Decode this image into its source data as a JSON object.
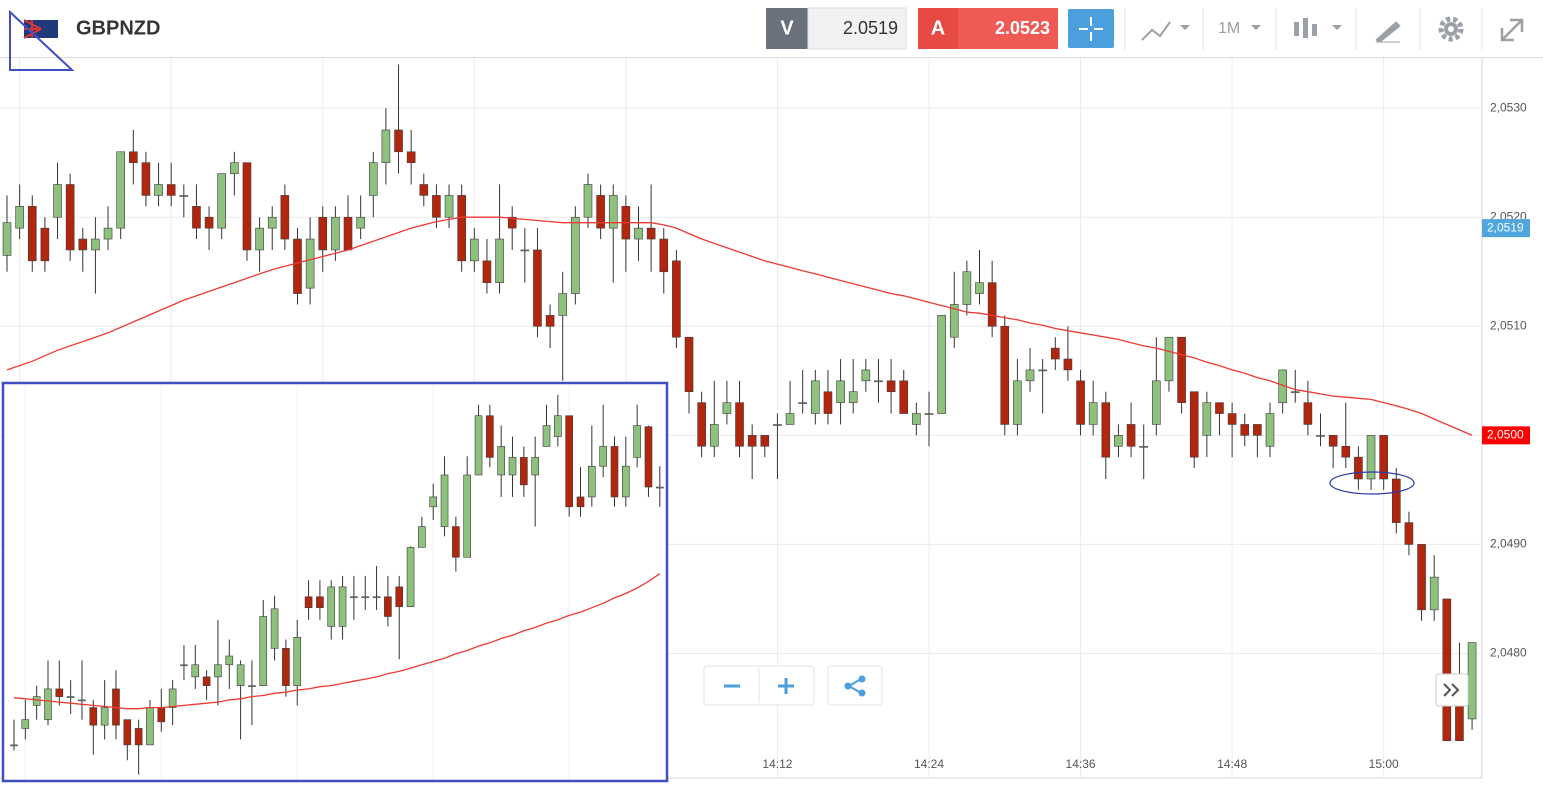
{
  "toolbar": {
    "symbol": "GBPNZD",
    "bid": {
      "label": "V",
      "price": 2.0519
    },
    "ask": {
      "label": "A",
      "price": 2.0523
    },
    "timeframe": "1M"
  },
  "chart_data": [
    {
      "type": "candlestick",
      "x": [
        null,
        null,
        null,
        null,
        null,
        null,
        null,
        null,
        null,
        null,
        null,
        null,
        null,
        null,
        null,
        null,
        null,
        null,
        null,
        null,
        null,
        null,
        null,
        null,
        null,
        null,
        null,
        null,
        null,
        null,
        null,
        null,
        null,
        null,
        null,
        null,
        null,
        null,
        null,
        null,
        null,
        null,
        null,
        null,
        null,
        null,
        null,
        null,
        null,
        null,
        null,
        null,
        null,
        null,
        null,
        null,
        null,
        null,
        null,
        null,
        null,
        "14:12",
        null,
        null,
        null,
        null,
        null,
        null,
        null,
        null,
        null,
        null,
        null,
        "14:24",
        null,
        null,
        null,
        null,
        null,
        null,
        null,
        null,
        null,
        null,
        null,
        "14:36",
        null,
        null,
        null,
        null,
        null,
        null,
        null,
        null,
        null,
        null,
        null,
        "14:48",
        null,
        null,
        null,
        null,
        null,
        null,
        null,
        null,
        null,
        null,
        null,
        "15:00",
        null,
        null,
        null,
        null,
        null,
        null,
        null
      ],
      "open": [
        2.05165,
        2.0519,
        2.0521,
        2.0519,
        2.052,
        2.0523,
        2.0518,
        2.0517,
        2.0518,
        2.0519,
        2.0526,
        2.0525,
        2.0522,
        2.0523,
        2.0522,
        2.0521,
        2.052,
        2.0519,
        2.0524,
        2.0525,
        2.0517,
        2.0519,
        2.0522,
        2.0518,
        2.05135,
        2.052,
        2.0517,
        2.052,
        2.0519,
        2.0522,
        2.0525,
        2.0528,
        2.0526,
        2.0523,
        2.0522,
        2.052,
        2.0522,
        2.0516,
        2.0516,
        2.0514,
        2.052,
        2.0517,
        2.0517,
        2.0511,
        2.0511,
        2.0513,
        2.052,
        2.0522,
        2.0519,
        2.0521,
        2.0518,
        2.0519,
        2.0518,
        2.0516,
        2.0509,
        2.0503,
        2.0499,
        2.0502,
        2.0503,
        2.05,
        2.05,
        2.0501,
        2.0501,
        2.0503,
        2.0502,
        2.0504,
        2.0503,
        2.0503,
        2.0505,
        2.0505,
        2.0505,
        2.0505,
        2.0501,
        2.0502,
        2.0502,
        2.0509,
        2.0512,
        2.0513,
        2.0514,
        2.051,
        2.0501,
        2.0505,
        2.0506,
        2.0508,
        2.0507,
        2.0505,
        2.0501,
        2.0503,
        2.0499,
        2.0501,
        2.0499,
        2.0501,
        2.0505,
        2.0509,
        2.0504,
        2.05,
        2.0503,
        2.0502,
        2.0501,
        2.0501,
        2.0499,
        2.0503,
        2.0504,
        2.0503,
        2.05,
        2.05,
        2.0499,
        2.0498,
        2.0496,
        2.05,
        2.0496,
        2.0492,
        2.049,
        2.0484,
        2.0485,
        2.0476,
        2.0474
      ],
      "high": [
        2.0522,
        2.0523,
        2.0522,
        2.052,
        2.0525,
        2.0524,
        2.0519,
        2.052,
        2.0521,
        2.0526,
        2.0528,
        2.0526,
        2.0525,
        2.0525,
        2.0523,
        2.0523,
        2.0521,
        2.0524,
        2.0526,
        2.0525,
        2.052,
        2.0521,
        2.0523,
        2.0519,
        2.052,
        2.0521,
        2.0521,
        2.0522,
        2.0522,
        2.0526,
        2.053,
        2.0534,
        2.0528,
        2.0524,
        2.0523,
        2.0523,
        2.0523,
        2.0519,
        2.0518,
        2.0523,
        2.0521,
        2.0519,
        2.0519,
        2.0512,
        2.0515,
        2.0521,
        2.0524,
        2.0523,
        2.0523,
        2.0522,
        2.0521,
        2.0523,
        2.0519,
        2.0517,
        2.0509,
        2.0504,
        2.0505,
        2.0505,
        2.0505,
        2.0501,
        2.05,
        2.0502,
        2.0505,
        2.0506,
        2.0506,
        2.0506,
        2.0507,
        2.0507,
        2.0507,
        2.0507,
        2.0507,
        2.0506,
        2.0503,
        2.0504,
        2.0511,
        2.0515,
        2.0516,
        2.0517,
        2.0516,
        2.0511,
        2.0507,
        2.0508,
        2.0507,
        2.0509,
        2.051,
        2.0506,
        2.0505,
        2.0504,
        2.0501,
        2.0503,
        2.0501,
        2.0509,
        2.0509,
        2.0509,
        2.0504,
        2.0504,
        2.0503,
        2.0503,
        2.0502,
        2.0501,
        2.0503,
        2.0506,
        2.0506,
        2.0505,
        2.0502,
        2.05,
        2.0503,
        2.0499,
        2.05,
        2.05,
        2.0497,
        2.0493,
        2.049,
        2.0489,
        2.0485,
        2.0481,
        2.0481
      ],
      "low": [
        2.0515,
        2.0518,
        2.0515,
        2.0515,
        2.0518,
        2.0516,
        2.0515,
        2.0513,
        2.0517,
        2.0518,
        2.0523,
        2.0521,
        2.0521,
        2.0521,
        2.052,
        2.0518,
        2.0517,
        2.0518,
        2.0522,
        2.0516,
        2.0515,
        2.0517,
        2.0517,
        2.0512,
        2.0512,
        2.0515,
        2.0516,
        2.0517,
        2.0518,
        2.052,
        2.0523,
        2.0524,
        2.0523,
        2.0521,
        2.0519,
        2.0519,
        2.0515,
        2.0515,
        2.0513,
        2.0513,
        2.0517,
        2.0514,
        2.0509,
        2.0508,
        2.0505,
        2.0512,
        2.0519,
        2.0518,
        2.0514,
        2.0515,
        2.0516,
        2.0515,
        2.0513,
        2.0508,
        2.0502,
        2.0498,
        2.0498,
        2.0501,
        2.0498,
        2.0496,
        2.0498,
        2.0496,
        2.0501,
        2.0502,
        2.0501,
        2.0501,
        2.0501,
        2.0502,
        2.0504,
        2.0503,
        2.0502,
        2.0502,
        2.05,
        2.0499,
        2.0502,
        2.0508,
        2.0511,
        2.0512,
        2.0509,
        2.05,
        2.05,
        2.0504,
        2.0502,
        2.0506,
        2.0505,
        2.05,
        2.05,
        2.0496,
        2.0498,
        2.0498,
        2.0496,
        2.05,
        2.0504,
        2.0502,
        2.0497,
        2.0498,
        2.05,
        2.0498,
        2.0499,
        2.0498,
        2.0498,
        2.0502,
        2.0503,
        2.05,
        2.0499,
        2.0497,
        2.0497,
        2.0495,
        2.0495,
        2.0495,
        2.0491,
        2.0489,
        2.0483,
        2.0483,
        2.0472,
        2.0472,
        2.0473
      ],
      "close": [
        2.05195,
        2.0521,
        2.0516,
        2.0516,
        2.0523,
        2.0517,
        2.0517,
        2.0518,
        2.0519,
        2.0526,
        2.0525,
        2.0522,
        2.0523,
        2.0522,
        2.0522,
        2.0519,
        2.0519,
        2.0524,
        2.0525,
        2.0517,
        2.0519,
        2.052,
        2.0518,
        2.0513,
        2.0518,
        2.0517,
        2.052,
        2.0517,
        2.052,
        2.0525,
        2.0528,
        2.0526,
        2.0525,
        2.0522,
        2.052,
        2.0522,
        2.0516,
        2.0518,
        2.0514,
        2.0518,
        2.0519,
        2.0517,
        2.051,
        2.051,
        2.0513,
        2.052,
        2.0523,
        2.0519,
        2.0522,
        2.0518,
        2.0519,
        2.0518,
        2.0515,
        2.0509,
        2.0504,
        2.0499,
        2.0501,
        2.0503,
        2.0499,
        2.0499,
        2.0499,
        2.0501,
        2.0502,
        2.0503,
        2.0505,
        2.0502,
        2.0505,
        2.0504,
        2.0506,
        2.0505,
        2.0504,
        2.0502,
        2.0502,
        2.0502,
        2.0511,
        2.0512,
        2.0515,
        2.0514,
        2.051,
        2.0501,
        2.0505,
        2.0506,
        2.0506,
        2.0507,
        2.0506,
        2.0501,
        2.0503,
        2.0498,
        2.05,
        2.0499,
        2.0499,
        2.0505,
        2.0509,
        2.0503,
        2.0498,
        2.0503,
        2.0502,
        2.0501,
        2.05,
        2.05,
        2.0502,
        2.0506,
        2.0504,
        2.0501,
        2.05,
        2.0499,
        2.0498,
        2.0496,
        2.05,
        2.0496,
        2.0492,
        2.049,
        2.0484,
        2.0487,
        2.0472,
        2.0472,
        2.0481
      ],
      "moving_average": {
        "color": "#ee3a32",
        "values": [
          2.0506,
          2.05064,
          2.05068,
          2.05073,
          2.05078,
          2.05082,
          2.05086,
          2.0509,
          2.05094,
          2.05099,
          2.05104,
          2.05109,
          2.05114,
          2.05119,
          2.05124,
          2.05128,
          2.05132,
          2.05136,
          2.0514,
          2.05144,
          2.05148,
          2.05152,
          2.05155,
          2.05158,
          2.05161,
          2.05164,
          2.05167,
          2.0517,
          2.05174,
          2.05178,
          2.05182,
          2.05186,
          2.0519,
          2.05193,
          2.05196,
          2.05198,
          2.052,
          2.052,
          2.052,
          2.052,
          2.05199,
          2.05198,
          2.05197,
          2.05196,
          2.05195,
          2.05195,
          2.05195,
          2.05195,
          2.05195,
          2.05195,
          2.05195,
          2.05195,
          2.05193,
          2.0519,
          2.05185,
          2.0518,
          2.05176,
          2.05172,
          2.05168,
          2.05164,
          2.0516,
          2.05157,
          2.05154,
          2.05151,
          2.05148,
          2.05145,
          2.05142,
          2.05139,
          2.05136,
          2.05133,
          2.0513,
          2.05128,
          2.05125,
          2.05122,
          2.05119,
          2.05116,
          2.05113,
          2.05112,
          2.0511,
          2.05108,
          2.05106,
          2.05103,
          2.05101,
          2.05098,
          2.05096,
          2.05094,
          2.05092,
          2.0509,
          2.05088,
          2.05085,
          2.05082,
          2.0508,
          2.05077,
          2.05074,
          2.05071,
          2.05067,
          2.05064,
          2.0506,
          2.05057,
          2.05053,
          2.0505,
          2.05046,
          2.05042,
          2.0504,
          2.05038,
          2.05036,
          2.05035,
          2.05034,
          2.05033,
          2.0503,
          2.05027,
          2.05024,
          2.0502,
          2.05015,
          2.0501,
          2.05005,
          2.05
        ]
      },
      "up_color": "#8fc17e",
      "down_color": "#b3260e",
      "ylim": [
        2.04695,
        2.05346
      ],
      "yticks": [
        {
          "value": 2.048,
          "label": "2,0480"
        },
        {
          "value": 2.049,
          "label": "2,0490"
        },
        {
          "value": 2.05,
          "label": "2,0500"
        },
        {
          "value": 2.051,
          "label": "2,0510"
        },
        {
          "value": 2.052,
          "label": "2,0520"
        },
        {
          "value": 2.053,
          "label": "2,0530"
        }
      ],
      "grid": true,
      "last_price": {
        "value": 2.0519,
        "label": "2,0519",
        "color": "#4ea6dc"
      },
      "average_price": {
        "value": 2.05,
        "label": "2,0500",
        "color": "#ff0000"
      }
    },
    {
      "type": "candlestick",
      "open": [
        2.04722,
        2.04737,
        2.04758,
        2.04745,
        2.04773,
        2.04766,
        2.04763,
        2.04756,
        2.0474,
        2.04773,
        2.04745,
        2.04737,
        2.04722,
        2.04756,
        2.04756,
        2.04795,
        2.04784,
        2.04784,
        2.04784,
        2.04795,
        2.04776,
        2.04776,
        2.04776,
        2.0481,
        2.0481,
        2.04776,
        2.04857,
        2.04857,
        2.0483,
        2.0483,
        2.04857,
        2.04857,
        2.04857,
        2.04857,
        2.04866,
        2.04848,
        2.04902,
        2.04939,
        2.04921,
        2.04921,
        2.04893,
        2.04968,
        2.05022,
        2.04968,
        2.04968,
        2.04984,
        2.04968,
        2.04994,
        2.05003,
        2.05022,
        2.04948,
        2.04948,
        2.04976,
        2.04994,
        2.04948,
        2.04984,
        2.05012,
        2.04957
      ],
      "high": [
        2.04745,
        2.04763,
        2.04776,
        2.04799,
        2.04799,
        2.04781,
        2.04799,
        2.04763,
        2.04781,
        2.0479,
        2.04745,
        2.04745,
        2.04763,
        2.04773,
        2.04781,
        2.04813,
        2.04813,
        2.0479,
        2.04836,
        2.04818,
        2.04799,
        2.04799,
        2.04854,
        2.04858,
        2.04818,
        2.04836,
        2.04872,
        2.04872,
        2.04872,
        2.04876,
        2.04876,
        2.04876,
        2.04885,
        2.04876,
        2.04876,
        2.04903,
        2.0493,
        2.0496,
        2.04985,
        2.0493,
        2.04985,
        2.05032,
        2.05032,
        2.05013,
        2.05003,
        2.04994,
        2.05003,
        2.05032,
        2.05041,
        2.05022,
        2.04975,
        2.05013,
        2.05032,
        2.05003,
        2.05003,
        2.05032,
        2.05013,
        2.04976
      ],
      "low": [
        2.04717,
        2.04727,
        2.04745,
        2.0474,
        2.04758,
        2.0475,
        2.04745,
        2.04713,
        2.04727,
        2.04727,
        2.04708,
        2.04695,
        2.04722,
        2.04734,
        2.0474,
        2.04781,
        2.04773,
        2.04763,
        2.04758,
        2.04773,
        2.04727,
        2.0474,
        2.04776,
        2.04799,
        2.04766,
        2.04758,
        2.04836,
        2.04836,
        2.04818,
        2.04818,
        2.04836,
        2.04845,
        2.04845,
        2.0483,
        2.048,
        2.04848,
        2.04902,
        2.04927,
        2.04912,
        2.0488,
        2.04893,
        2.04968,
        2.04975,
        2.04948,
        2.04948,
        2.04948,
        2.04921,
        2.04994,
        2.04994,
        2.0493,
        2.0493,
        2.04939,
        2.04966,
        2.04939,
        2.04939,
        2.04975,
        2.04948,
        2.04939
      ],
      "close": [
        2.04722,
        2.04745,
        2.04766,
        2.04773,
        2.04766,
        2.04766,
        2.04763,
        2.0474,
        2.04756,
        2.0474,
        2.04722,
        2.04722,
        2.04756,
        2.04743,
        2.04773,
        2.04795,
        2.04795,
        2.04776,
        2.04795,
        2.04803,
        2.04795,
        2.04776,
        2.04839,
        2.04846,
        2.04776,
        2.0482,
        2.04847,
        2.04847,
        2.04866,
        2.04866,
        2.04857,
        2.04857,
        2.04857,
        2.04839,
        2.04848,
        2.04902,
        2.04921,
        2.04948,
        2.04968,
        2.04893,
        2.04968,
        2.05022,
        2.04984,
        2.04994,
        2.04984,
        2.04959,
        2.04984,
        2.05013,
        2.05022,
        2.04939,
        2.04939,
        2.04976,
        2.04994,
        2.04948,
        2.04976,
        2.05013,
        2.04957,
        2.04957
      ],
      "moving_average": {
        "color": "#ee3a32",
        "values": [
          2.04765,
          2.04764,
          2.04763,
          2.04762,
          2.04761,
          2.0476,
          2.04759,
          2.04758,
          2.04757,
          2.04756,
          2.04755,
          2.04755,
          2.04756,
          2.04756,
          2.04757,
          2.04758,
          2.04759,
          2.0476,
          2.04761,
          2.04763,
          2.04764,
          2.04766,
          2.04767,
          2.04769,
          2.0477,
          2.04772,
          2.04773,
          2.04775,
          2.04776,
          2.04778,
          2.0478,
          2.04782,
          2.04784,
          2.04787,
          2.04789,
          2.04792,
          2.04795,
          2.04798,
          2.04801,
          2.04805,
          2.04808,
          2.04812,
          2.04815,
          2.04819,
          2.04822,
          2.04826,
          2.04829,
          2.04833,
          2.04836,
          2.0484,
          2.04843,
          2.04847,
          2.04851,
          2.04856,
          2.0486,
          2.04865,
          2.04871,
          2.04878
        ]
      },
      "up_color": "#8fc17e",
      "down_color": "#b3260e",
      "ylim": [
        2.0469,
        2.0505
      ]
    }
  ]
}
